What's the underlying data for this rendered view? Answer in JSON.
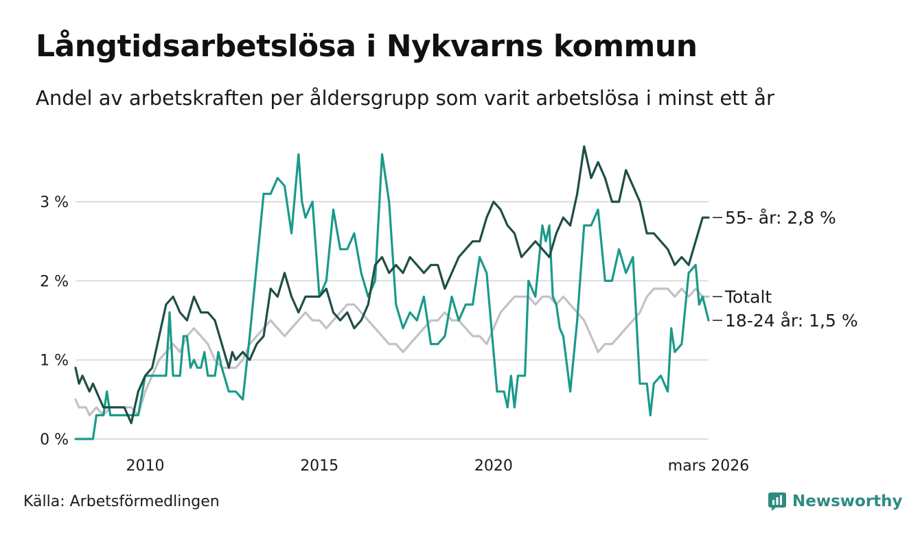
{
  "title": "Långtidsarbetslösa i Nykvarns kommun",
  "subtitle": "Andel av arbetskraften per åldersgrupp som varit arbetslösa i minst ett år",
  "source": "Källa: Arbetsförmedlingen",
  "brand": {
    "name": "Newsworthy",
    "icon": "newsworthy-logo-icon",
    "color": "#2e8b80"
  },
  "colors": {
    "grid": "#dcdcdc",
    "series_55": "#1f4e46",
    "series_total": "#c2c0c9",
    "series_18_24": "#1a9a89",
    "text": "#1a1a1a"
  },
  "chart_data": {
    "type": "line",
    "title": "Långtidsarbetslösa i Nykvarns kommun",
    "xlabel": "",
    "ylabel": "",
    "xlim": [
      2008.0,
      2026.17
    ],
    "ylim": [
      0,
      3.75
    ],
    "y_ticks": [
      0,
      1,
      2,
      3
    ],
    "y_tick_labels": [
      "0 %",
      "1 %",
      "2 %",
      "3 %"
    ],
    "x_ticks": [
      2010,
      2015,
      2020,
      2026.17
    ],
    "x_tick_labels": [
      "2010",
      "2015",
      "2020",
      "mars 2026"
    ],
    "series": [
      {
        "name": "Totalt",
        "label": "Totalt",
        "color": "#c2c0c9",
        "points": [
          [
            2008.0,
            0.5
          ],
          [
            2008.1,
            0.4
          ],
          [
            2008.3,
            0.4
          ],
          [
            2008.4,
            0.3
          ],
          [
            2008.6,
            0.4
          ],
          [
            2008.8,
            0.3
          ],
          [
            2009.0,
            0.4
          ],
          [
            2009.2,
            0.4
          ],
          [
            2009.4,
            0.4
          ],
          [
            2009.6,
            0.4
          ],
          [
            2009.8,
            0.3
          ],
          [
            2010.0,
            0.6
          ],
          [
            2010.2,
            0.8
          ],
          [
            2010.4,
            1.0
          ],
          [
            2010.6,
            1.1
          ],
          [
            2010.8,
            1.2
          ],
          [
            2011.0,
            1.1
          ],
          [
            2011.2,
            1.3
          ],
          [
            2011.4,
            1.4
          ],
          [
            2011.6,
            1.3
          ],
          [
            2011.8,
            1.2
          ],
          [
            2012.0,
            1.0
          ],
          [
            2012.2,
            0.9
          ],
          [
            2012.4,
            0.9
          ],
          [
            2012.6,
            0.9
          ],
          [
            2012.8,
            1.0
          ],
          [
            2013.0,
            1.2
          ],
          [
            2013.2,
            1.3
          ],
          [
            2013.4,
            1.4
          ],
          [
            2013.6,
            1.5
          ],
          [
            2013.8,
            1.4
          ],
          [
            2014.0,
            1.3
          ],
          [
            2014.2,
            1.4
          ],
          [
            2014.4,
            1.5
          ],
          [
            2014.6,
            1.6
          ],
          [
            2014.8,
            1.5
          ],
          [
            2015.0,
            1.5
          ],
          [
            2015.2,
            1.4
          ],
          [
            2015.4,
            1.5
          ],
          [
            2015.6,
            1.6
          ],
          [
            2015.8,
            1.7
          ],
          [
            2016.0,
            1.7
          ],
          [
            2016.2,
            1.6
          ],
          [
            2016.4,
            1.5
          ],
          [
            2016.6,
            1.4
          ],
          [
            2016.8,
            1.3
          ],
          [
            2017.0,
            1.2
          ],
          [
            2017.2,
            1.2
          ],
          [
            2017.4,
            1.1
          ],
          [
            2017.6,
            1.2
          ],
          [
            2017.8,
            1.3
          ],
          [
            2018.0,
            1.4
          ],
          [
            2018.2,
            1.5
          ],
          [
            2018.4,
            1.5
          ],
          [
            2018.6,
            1.6
          ],
          [
            2018.8,
            1.5
          ],
          [
            2019.0,
            1.5
          ],
          [
            2019.2,
            1.4
          ],
          [
            2019.4,
            1.3
          ],
          [
            2019.6,
            1.3
          ],
          [
            2019.8,
            1.2
          ],
          [
            2020.0,
            1.4
          ],
          [
            2020.2,
            1.6
          ],
          [
            2020.4,
            1.7
          ],
          [
            2020.6,
            1.8
          ],
          [
            2020.8,
            1.8
          ],
          [
            2021.0,
            1.8
          ],
          [
            2021.2,
            1.7
          ],
          [
            2021.4,
            1.8
          ],
          [
            2021.6,
            1.8
          ],
          [
            2021.8,
            1.7
          ],
          [
            2022.0,
            1.8
          ],
          [
            2022.2,
            1.7
          ],
          [
            2022.4,
            1.6
          ],
          [
            2022.6,
            1.5
          ],
          [
            2022.8,
            1.3
          ],
          [
            2023.0,
            1.1
          ],
          [
            2023.2,
            1.2
          ],
          [
            2023.4,
            1.2
          ],
          [
            2023.6,
            1.3
          ],
          [
            2023.8,
            1.4
          ],
          [
            2024.0,
            1.5
          ],
          [
            2024.2,
            1.6
          ],
          [
            2024.4,
            1.8
          ],
          [
            2024.6,
            1.9
          ],
          [
            2024.8,
            1.9
          ],
          [
            2025.0,
            1.9
          ],
          [
            2025.2,
            1.8
          ],
          [
            2025.4,
            1.9
          ],
          [
            2025.6,
            1.8
          ],
          [
            2025.8,
            1.9
          ],
          [
            2026.0,
            1.8
          ],
          [
            2026.17,
            1.8
          ]
        ]
      },
      {
        "name": "18-24 år",
        "label": "18-24 år: 1,5 %",
        "color": "#1a9a89",
        "points": [
          [
            2008.0,
            0.0
          ],
          [
            2008.3,
            0.0
          ],
          [
            2008.5,
            0.0
          ],
          [
            2008.6,
            0.3
          ],
          [
            2008.8,
            0.3
          ],
          [
            2008.9,
            0.6
          ],
          [
            2009.0,
            0.3
          ],
          [
            2009.2,
            0.3
          ],
          [
            2009.4,
            0.3
          ],
          [
            2009.6,
            0.3
          ],
          [
            2009.8,
            0.3
          ],
          [
            2010.0,
            0.8
          ],
          [
            2010.2,
            0.8
          ],
          [
            2010.4,
            0.8
          ],
          [
            2010.6,
            0.8
          ],
          [
            2010.7,
            1.6
          ],
          [
            2010.8,
            0.8
          ],
          [
            2011.0,
            0.8
          ],
          [
            2011.1,
            1.3
          ],
          [
            2011.2,
            1.3
          ],
          [
            2011.3,
            0.9
          ],
          [
            2011.4,
            1.0
          ],
          [
            2011.5,
            0.9
          ],
          [
            2011.6,
            0.9
          ],
          [
            2011.7,
            1.1
          ],
          [
            2011.8,
            0.8
          ],
          [
            2012.0,
            0.8
          ],
          [
            2012.1,
            1.1
          ],
          [
            2012.2,
            0.9
          ],
          [
            2012.4,
            0.6
          ],
          [
            2012.6,
            0.6
          ],
          [
            2012.8,
            0.5
          ],
          [
            2013.0,
            1.3
          ],
          [
            2013.2,
            2.2
          ],
          [
            2013.4,
            3.1
          ],
          [
            2013.6,
            3.1
          ],
          [
            2013.8,
            3.3
          ],
          [
            2014.0,
            3.2
          ],
          [
            2014.2,
            2.6
          ],
          [
            2014.4,
            3.6
          ],
          [
            2014.5,
            3.0
          ],
          [
            2014.6,
            2.8
          ],
          [
            2014.8,
            3.0
          ],
          [
            2015.0,
            1.8
          ],
          [
            2015.2,
            2.0
          ],
          [
            2015.4,
            2.9
          ],
          [
            2015.6,
            2.4
          ],
          [
            2015.8,
            2.4
          ],
          [
            2016.0,
            2.6
          ],
          [
            2016.2,
            2.1
          ],
          [
            2016.4,
            1.8
          ],
          [
            2016.6,
            2.0
          ],
          [
            2016.8,
            3.6
          ],
          [
            2017.0,
            3.0
          ],
          [
            2017.2,
            1.7
          ],
          [
            2017.4,
            1.4
          ],
          [
            2017.6,
            1.6
          ],
          [
            2017.8,
            1.5
          ],
          [
            2018.0,
            1.8
          ],
          [
            2018.2,
            1.2
          ],
          [
            2018.4,
            1.2
          ],
          [
            2018.6,
            1.3
          ],
          [
            2018.8,
            1.8
          ],
          [
            2019.0,
            1.5
          ],
          [
            2019.2,
            1.7
          ],
          [
            2019.4,
            1.7
          ],
          [
            2019.6,
            2.3
          ],
          [
            2019.8,
            2.1
          ],
          [
            2020.0,
            1.1
          ],
          [
            2020.1,
            0.6
          ],
          [
            2020.3,
            0.6
          ],
          [
            2020.4,
            0.4
          ],
          [
            2020.5,
            0.8
          ],
          [
            2020.6,
            0.4
          ],
          [
            2020.7,
            0.8
          ],
          [
            2020.9,
            0.8
          ],
          [
            2021.0,
            2.0
          ],
          [
            2021.2,
            1.8
          ],
          [
            2021.4,
            2.7
          ],
          [
            2021.5,
            2.5
          ],
          [
            2021.6,
            2.7
          ],
          [
            2021.7,
            1.8
          ],
          [
            2021.8,
            1.7
          ],
          [
            2021.9,
            1.4
          ],
          [
            2022.0,
            1.3
          ],
          [
            2022.2,
            0.6
          ],
          [
            2022.4,
            1.5
          ],
          [
            2022.6,
            2.7
          ],
          [
            2022.8,
            2.7
          ],
          [
            2023.0,
            2.9
          ],
          [
            2023.2,
            2.0
          ],
          [
            2023.4,
            2.0
          ],
          [
            2023.6,
            2.4
          ],
          [
            2023.8,
            2.1
          ],
          [
            2024.0,
            2.3
          ],
          [
            2024.2,
            0.7
          ],
          [
            2024.4,
            0.7
          ],
          [
            2024.5,
            0.3
          ],
          [
            2024.6,
            0.7
          ],
          [
            2024.8,
            0.8
          ],
          [
            2025.0,
            0.6
          ],
          [
            2025.1,
            1.4
          ],
          [
            2025.2,
            1.1
          ],
          [
            2025.4,
            1.2
          ],
          [
            2025.6,
            2.1
          ],
          [
            2025.8,
            2.2
          ],
          [
            2025.9,
            1.7
          ],
          [
            2026.0,
            1.8
          ],
          [
            2026.17,
            1.5
          ]
        ]
      },
      {
        "name": "55- år",
        "label": "55- år: 2,8 %",
        "color": "#1f4e46",
        "points": [
          [
            2008.0,
            0.9
          ],
          [
            2008.1,
            0.7
          ],
          [
            2008.2,
            0.8
          ],
          [
            2008.4,
            0.6
          ],
          [
            2008.5,
            0.7
          ],
          [
            2008.7,
            0.5
          ],
          [
            2008.8,
            0.4
          ],
          [
            2009.0,
            0.4
          ],
          [
            2009.2,
            0.4
          ],
          [
            2009.4,
            0.4
          ],
          [
            2009.6,
            0.2
          ],
          [
            2009.8,
            0.6
          ],
          [
            2010.0,
            0.8
          ],
          [
            2010.2,
            0.9
          ],
          [
            2010.4,
            1.3
          ],
          [
            2010.6,
            1.7
          ],
          [
            2010.8,
            1.8
          ],
          [
            2011.0,
            1.6
          ],
          [
            2011.2,
            1.5
          ],
          [
            2011.4,
            1.8
          ],
          [
            2011.6,
            1.6
          ],
          [
            2011.8,
            1.6
          ],
          [
            2012.0,
            1.5
          ],
          [
            2012.2,
            1.2
          ],
          [
            2012.4,
            0.9
          ],
          [
            2012.5,
            1.1
          ],
          [
            2012.6,
            1.0
          ],
          [
            2012.8,
            1.1
          ],
          [
            2013.0,
            1.0
          ],
          [
            2013.2,
            1.2
          ],
          [
            2013.4,
            1.3
          ],
          [
            2013.6,
            1.9
          ],
          [
            2013.8,
            1.8
          ],
          [
            2014.0,
            2.1
          ],
          [
            2014.2,
            1.8
          ],
          [
            2014.4,
            1.6
          ],
          [
            2014.6,
            1.8
          ],
          [
            2014.8,
            1.8
          ],
          [
            2015.0,
            1.8
          ],
          [
            2015.2,
            1.9
          ],
          [
            2015.4,
            1.6
          ],
          [
            2015.6,
            1.5
          ],
          [
            2015.8,
            1.6
          ],
          [
            2016.0,
            1.4
          ],
          [
            2016.2,
            1.5
          ],
          [
            2016.4,
            1.7
          ],
          [
            2016.6,
            2.2
          ],
          [
            2016.8,
            2.3
          ],
          [
            2017.0,
            2.1
          ],
          [
            2017.2,
            2.2
          ],
          [
            2017.4,
            2.1
          ],
          [
            2017.6,
            2.3
          ],
          [
            2017.8,
            2.2
          ],
          [
            2018.0,
            2.1
          ],
          [
            2018.2,
            2.2
          ],
          [
            2018.4,
            2.2
          ],
          [
            2018.6,
            1.9
          ],
          [
            2018.8,
            2.1
          ],
          [
            2019.0,
            2.3
          ],
          [
            2019.2,
            2.4
          ],
          [
            2019.4,
            2.5
          ],
          [
            2019.6,
            2.5
          ],
          [
            2019.8,
            2.8
          ],
          [
            2020.0,
            3.0
          ],
          [
            2020.2,
            2.9
          ],
          [
            2020.4,
            2.7
          ],
          [
            2020.6,
            2.6
          ],
          [
            2020.8,
            2.3
          ],
          [
            2021.0,
            2.4
          ],
          [
            2021.2,
            2.5
          ],
          [
            2021.4,
            2.4
          ],
          [
            2021.6,
            2.3
          ],
          [
            2021.8,
            2.6
          ],
          [
            2022.0,
            2.8
          ],
          [
            2022.2,
            2.7
          ],
          [
            2022.4,
            3.1
          ],
          [
            2022.6,
            3.7
          ],
          [
            2022.8,
            3.3
          ],
          [
            2023.0,
            3.5
          ],
          [
            2023.2,
            3.3
          ],
          [
            2023.4,
            3.0
          ],
          [
            2023.6,
            3.0
          ],
          [
            2023.8,
            3.4
          ],
          [
            2024.0,
            3.2
          ],
          [
            2024.2,
            3.0
          ],
          [
            2024.4,
            2.6
          ],
          [
            2024.6,
            2.6
          ],
          [
            2024.8,
            2.5
          ],
          [
            2025.0,
            2.4
          ],
          [
            2025.2,
            2.2
          ],
          [
            2025.4,
            2.3
          ],
          [
            2025.6,
            2.2
          ],
          [
            2025.8,
            2.5
          ],
          [
            2026.0,
            2.8
          ],
          [
            2026.17,
            2.8
          ]
        ]
      }
    ]
  }
}
